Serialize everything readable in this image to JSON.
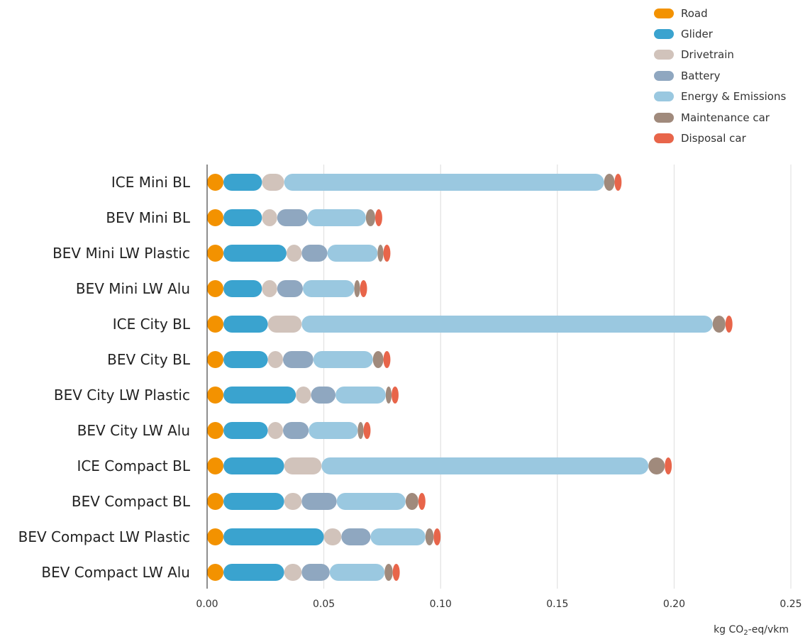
{
  "chart_data": {
    "type": "bar",
    "stacked": true,
    "orientation": "horizontal",
    "categories": [
      "ICE Mini BL",
      "BEV Mini BL",
      "BEV Mini LW Plastic",
      "BEV Mini LW Alu",
      "ICE City BL",
      "BEV City BL",
      "BEV City LW Plastic",
      "BEV City LW Alu",
      "ICE Compact BL",
      "BEV Compact BL",
      "BEV Compact LW Plastic",
      "BEV Compact LW Alu"
    ],
    "series": [
      {
        "name": "Road",
        "color": "#f39200",
        "values": [
          0.007,
          0.007,
          0.007,
          0.007,
          0.007,
          0.007,
          0.007,
          0.007,
          0.007,
          0.007,
          0.007,
          0.007
        ]
      },
      {
        "name": "Glider",
        "color": "#3aa3cf",
        "values": [
          0.0165,
          0.0165,
          0.027,
          0.0165,
          0.019,
          0.019,
          0.031,
          0.019,
          0.026,
          0.026,
          0.043,
          0.026
        ]
      },
      {
        "name": "Drivetrain",
        "color": "#d1c3bb",
        "values": [
          0.0095,
          0.0065,
          0.0065,
          0.0065,
          0.0145,
          0.0065,
          0.0065,
          0.0065,
          0.016,
          0.0075,
          0.0075,
          0.0075
        ]
      },
      {
        "name": "Battery",
        "color": "#8fa7c0",
        "values": [
          0,
          0.013,
          0.011,
          0.011,
          0,
          0.013,
          0.0105,
          0.011,
          0,
          0.015,
          0.0125,
          0.012
        ]
      },
      {
        "name": "Energy & Emissions",
        "color": "#9ac8e0",
        "values": [
          0.137,
          0.025,
          0.0215,
          0.022,
          0.176,
          0.0255,
          0.0215,
          0.021,
          0.14,
          0.0295,
          0.0235,
          0.0235
        ]
      },
      {
        "name": "Maintenance car",
        "color": "#a08a7c",
        "values": [
          0.0045,
          0.004,
          0.0025,
          0.0025,
          0.0055,
          0.0045,
          0.0025,
          0.0025,
          0.007,
          0.0055,
          0.0035,
          0.0035
        ]
      },
      {
        "name": "Disposal car",
        "color": "#e8654a",
        "values": [
          0.003,
          0.003,
          0.003,
          0.003,
          0.003,
          0.003,
          0.003,
          0.003,
          0.003,
          0.003,
          0.003,
          0.003
        ]
      }
    ],
    "xlim": [
      0,
      0.25
    ],
    "xticks": [
      0.0,
      0.05,
      0.1,
      0.15,
      0.2,
      0.25
    ],
    "xtick_labels": [
      "0.00",
      "0.05",
      "0.10",
      "0.15",
      "0.20",
      "0.25"
    ],
    "xlabel_parts": {
      "pre": "kg CO",
      "sub": "2",
      "post": "-eq/vkm"
    },
    "grid": true,
    "legend_position": "top-right"
  }
}
